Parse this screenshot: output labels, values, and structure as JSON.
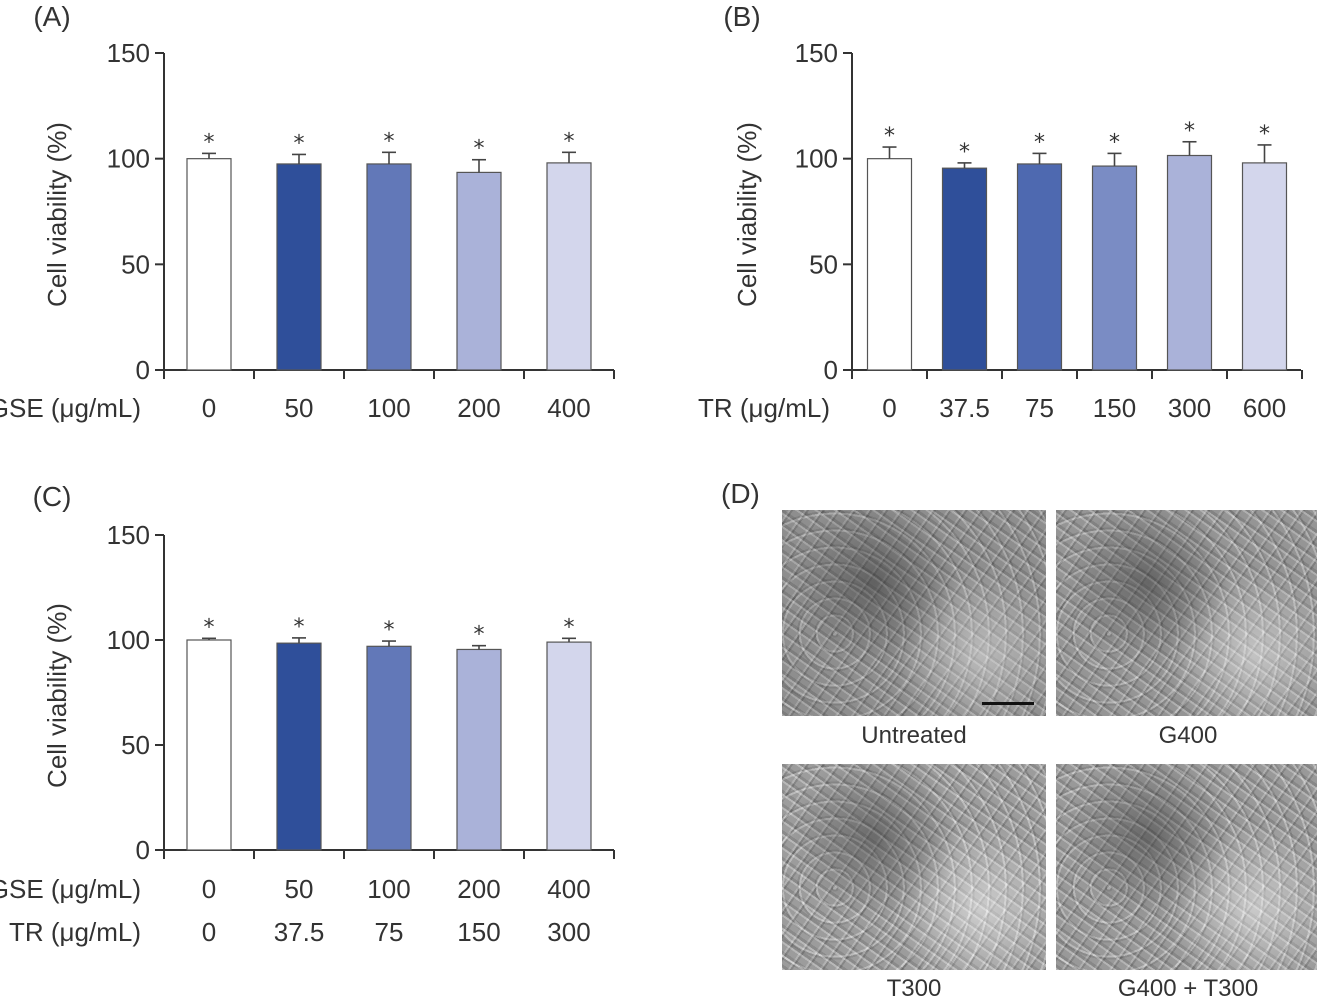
{
  "panels": {
    "A": {
      "letter": "(A)"
    },
    "B": {
      "letter": "(B)"
    },
    "C": {
      "letter": "(C)"
    },
    "D": {
      "letter": "(D)",
      "images": [
        {
          "caption": "Untreated"
        },
        {
          "caption": "G400"
        },
        {
          "caption": "T300"
        },
        {
          "caption": "G400 + T300"
        }
      ]
    }
  },
  "colors": {
    "bar_0": "#ffffff",
    "bar_1": "#2f4f9a",
    "bar_2": "#6278b8",
    "bar_3": "#aab2d9",
    "bar_4": "#d3d6ec",
    "axis": "#333333"
  },
  "chart_data": [
    {
      "type": "bar",
      "panel": "A",
      "ylabel": "Cell viability (%)",
      "ylim": [
        0,
        150
      ],
      "yticks": [
        0,
        50,
        100,
        150
      ],
      "xrows": [
        {
          "label": "GSE (μg/mL)",
          "categories": [
            "0",
            "50",
            "100",
            "200",
            "400"
          ]
        }
      ],
      "values": [
        100,
        97.5,
        97.5,
        93.5,
        98
      ],
      "errors": [
        2.5,
        4.5,
        5.5,
        6,
        5
      ],
      "annotations": [
        "*",
        "*",
        "*",
        "*",
        "*"
      ],
      "colors": [
        "#ffffff",
        "#2f4f9a",
        "#6278b8",
        "#aab2d9",
        "#d3d6ec"
      ]
    },
    {
      "type": "bar",
      "panel": "B",
      "ylabel": "Cell viability (%)",
      "ylim": [
        0,
        150
      ],
      "yticks": [
        0,
        50,
        100,
        150
      ],
      "xrows": [
        {
          "label": "TR (μg/mL)",
          "categories": [
            "0",
            "37.5",
            "75",
            "150",
            "300",
            "600"
          ]
        }
      ],
      "values": [
        100,
        95.5,
        97.5,
        96.5,
        101.5,
        98
      ],
      "errors": [
        5.5,
        2.5,
        5,
        6,
        6.5,
        8.5
      ],
      "annotations": [
        "*",
        "*",
        "*",
        "*",
        "*",
        "*"
      ],
      "colors": [
        "#ffffff",
        "#2f4f9a",
        "#4e69b0",
        "#7a8cc4",
        "#aab2d9",
        "#d3d6ec"
      ]
    },
    {
      "type": "bar",
      "panel": "C",
      "ylabel": "Cell viability (%)",
      "ylim": [
        0,
        150
      ],
      "yticks": [
        0,
        50,
        100,
        150
      ],
      "xrows": [
        {
          "label": "GSE (μg/mL)",
          "categories": [
            "0",
            "50",
            "100",
            "200",
            "400"
          ]
        },
        {
          "label": "TR (μg/mL)",
          "categories": [
            "0",
            "37.5",
            "75",
            "150",
            "300"
          ]
        }
      ],
      "values": [
        100,
        98.5,
        97,
        95.5,
        99
      ],
      "errors": [
        0.8,
        2.5,
        2.5,
        1.8,
        1.8
      ],
      "annotations": [
        "*",
        "*",
        "*",
        "*",
        "*"
      ],
      "colors": [
        "#ffffff",
        "#2f4f9a",
        "#6278b8",
        "#aab2d9",
        "#d3d6ec"
      ]
    }
  ]
}
